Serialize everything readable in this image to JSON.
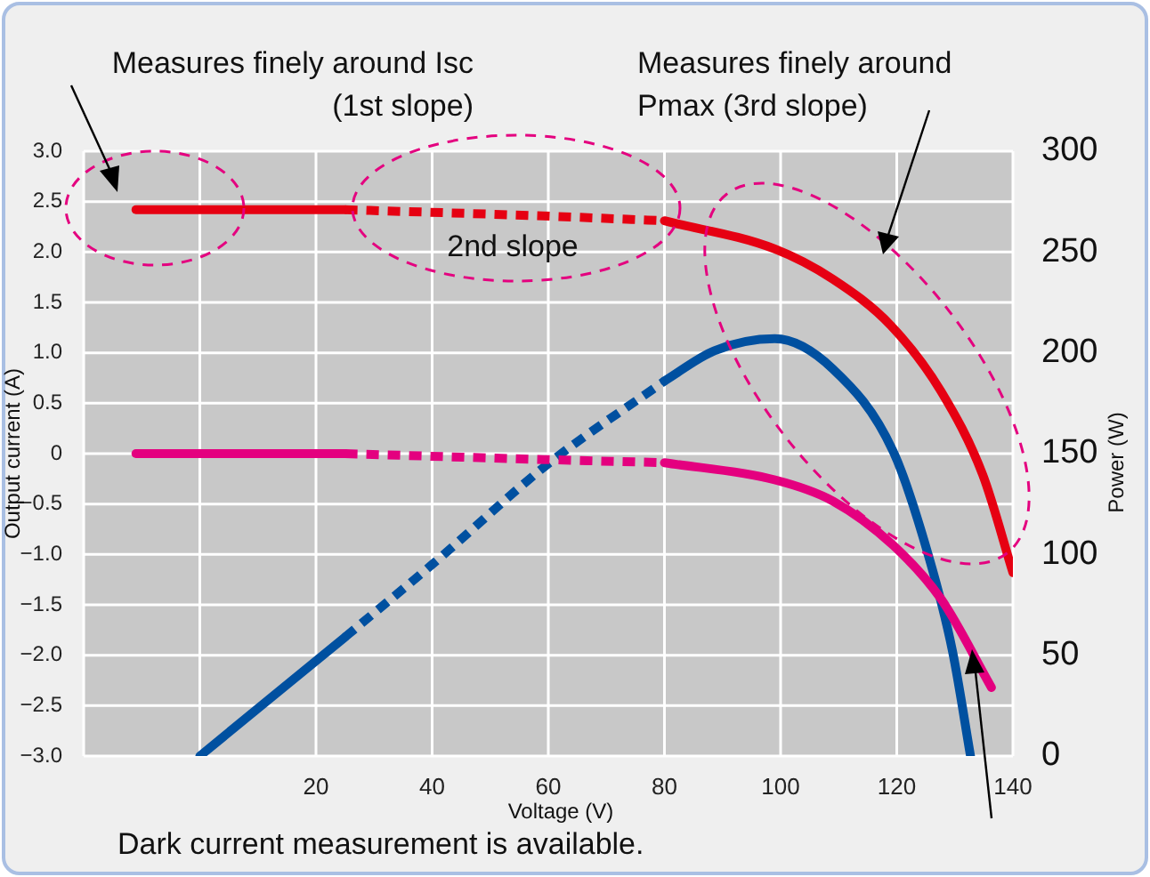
{
  "chart_data": {
    "type": "line",
    "xlabel": "Voltage (V)",
    "ylabel": "Output current (A)",
    "y2label": "Power (W)",
    "xlim": [
      -20,
      140
    ],
    "xticks": [
      {
        "value": -20,
        "label": null
      },
      {
        "value": 0,
        "label": null
      },
      20,
      40,
      60,
      80,
      100,
      120,
      140
    ],
    "ylim": [
      -3,
      3
    ],
    "yticks": [
      {
        "value": -3,
        "label": "−3.0"
      },
      {
        "value": -2.5,
        "label": "−2.5"
      },
      {
        "value": -2,
        "label": "−2.0"
      },
      {
        "value": -1.5,
        "label": "−1.5"
      },
      {
        "value": -1,
        "label": "−1.0"
      },
      {
        "value": -0.5,
        "label": "−0.5"
      },
      {
        "value": 0,
        "label": "0"
      },
      {
        "value": 0.5,
        "label": "0.5"
      },
      {
        "value": 1,
        "label": "1.0"
      },
      {
        "value": 1.5,
        "label": "1.5"
      },
      {
        "value": 2,
        "label": "2.0"
      },
      {
        "value": 2.5,
        "label": "2.5"
      },
      {
        "value": 3,
        "label": "3.0"
      }
    ],
    "y2lim": [
      0,
      300
    ],
    "y2ticks": [
      0,
      50,
      100,
      150,
      200,
      250,
      300
    ],
    "grid": true,
    "legend": false,
    "marker": "none",
    "series": [
      {
        "color": "#e60012",
        "x": [
          -11,
          25
        ],
        "values": [
          2.42,
          2.42
        ]
      },
      {
        "color": "#e60012",
        "line_style": "dotted",
        "x": [
          25,
          58,
          80
        ],
        "values": [
          2.42,
          2.36,
          2.31
        ]
      },
      {
        "color": "#e60012",
        "x": [
          80,
          99,
          109,
          119,
          127.6,
          134.8,
          140
        ],
        "values": [
          2.31,
          2.03,
          1.73,
          1.27,
          0.62,
          -0.21,
          -1.18
        ]
      },
      {
        "color": "#e4007f",
        "x": [
          -11,
          25
        ],
        "values": [
          0,
          0
        ]
      },
      {
        "color": "#e4007f",
        "line_style": "dotted",
        "x": [
          25,
          60,
          80
        ],
        "values": [
          0,
          -0.06,
          -0.09
        ]
      },
      {
        "color": "#e4007f",
        "x": [
          80,
          99,
          109,
          119.4,
          127.6,
          136.3
        ],
        "values": [
          -0.09,
          -0.26,
          -0.47,
          -0.91,
          -1.44,
          -2.32
        ]
      },
      {
        "color": "#0050a0",
        "axis": "y2",
        "x": [
          0,
          25
        ],
        "values": [
          0,
          59
        ]
      },
      {
        "color": "#0050a0",
        "axis": "y2",
        "line_style": "dotted",
        "x": [
          25,
          40,
          60,
          80
        ],
        "values": [
          59,
          95,
          145,
          186
        ]
      },
      {
        "color": "#0050a0",
        "axis": "y2",
        "x": [
          80,
          88.6,
          99,
          109,
          119.4,
          125.5,
          129.6,
          132.7
        ],
        "values": [
          186,
          201,
          207,
          192,
          151,
          99,
          52,
          0
        ]
      }
    ],
    "annotations": [
      "Measures finely around Isc (1st slope)",
      "Measures finely around Pmax (3rd slope)",
      "2nd slope",
      "Dark current measurement is available."
    ]
  }
}
